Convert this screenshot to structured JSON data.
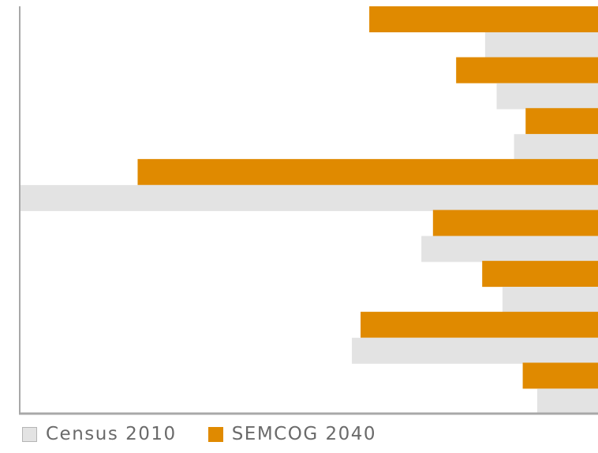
{
  "chart_data": {
    "type": "bar",
    "orientation": "horizontal",
    "direction": "right-to-left",
    "categories": [
      "",
      "",
      "",
      "",
      "",
      "",
      "",
      ""
    ],
    "series": [
      {
        "name": "Census 2010",
        "color": "#e3e3e3",
        "values": [
          19.5,
          17.5,
          14.5,
          100,
          30.5,
          16.5,
          42.5,
          10.5
        ]
      },
      {
        "name": "SEMCOG 2040",
        "color": "#e08a00",
        "values": [
          39.5,
          24.5,
          12.5,
          79.5,
          28.5,
          20,
          41,
          13
        ]
      }
    ],
    "xlim": [
      0,
      100
    ],
    "grid": false,
    "axis_tick_labels": false,
    "legend_placement": "bottom-left"
  },
  "legend": {
    "census_label": "Census 2010",
    "semcog_label": "SEMCOG 2040"
  }
}
